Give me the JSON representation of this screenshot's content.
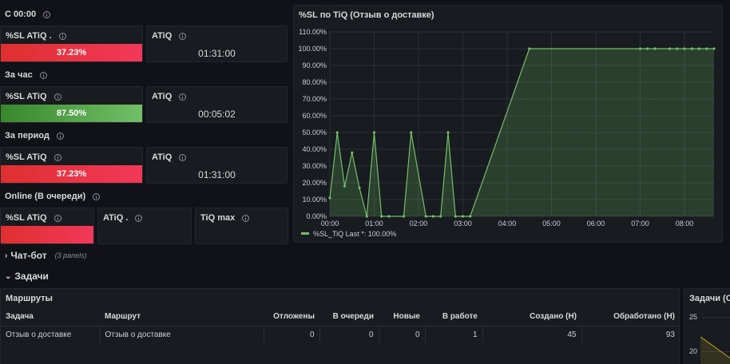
{
  "sections": {
    "s1": "С 00:00",
    "s2": "За час",
    "s3": "За период",
    "s4": "Online (В очереди)"
  },
  "stats": {
    "r1": {
      "sl_title": "%SL ATiQ .",
      "sl_value": "37.23%",
      "sl_level": 0.3723,
      "atiq_title": "ATiQ",
      "atiq_value": "01:31:00"
    },
    "r2": {
      "sl_title": "%SL ATiQ",
      "sl_value": "87.50%",
      "sl_level": 0.875,
      "atiq_title": "ATiQ",
      "atiq_value": "00:05:02"
    },
    "r3": {
      "sl_title": "%SL ATiQ",
      "sl_value": "37.23%",
      "sl_level": 0.3723,
      "atiq_title": "ATiQ",
      "atiq_value": "01:31:00"
    },
    "r4": {
      "sl_title": "%SL ATiQ",
      "atiq_title": "ATiQ .",
      "tiqmax_title": "TiQ max"
    }
  },
  "rows": {
    "chat_bot": {
      "title": "Чат-бот",
      "count": "(3 panels)"
    },
    "tasks": {
      "title": "Задачи"
    }
  },
  "table": {
    "title": "Маршруты",
    "headers": [
      "Задача",
      "Маршрут",
      "Отложены",
      "В очереди",
      "Новые",
      "В работе",
      "Создано (Н)",
      "Обработано (Н)"
    ],
    "rows": [
      [
        "Отзыв о доставке",
        "Отзыв о доставке",
        "0",
        "0",
        "0",
        "1",
        "45",
        "93"
      ]
    ]
  },
  "right_panel": {
    "title": "Задачи (От",
    "ticks": [
      "25",
      "20"
    ]
  },
  "colors": {
    "red": "#f2385a",
    "green": "#73bf69",
    "series": "#73bf69",
    "background": "#111217",
    "panel": "#181b1f"
  },
  "chart_data": {
    "type": "area",
    "title": "%SL по TiQ (Отзыв о доставке)",
    "yticks": [
      "0.00%",
      "10.00%",
      "20.00%",
      "30.00%",
      "40.00%",
      "50.00%",
      "60.00%",
      "70.00%",
      "80.00%",
      "90.00%",
      "100.00%",
      "110.00%"
    ],
    "xticks": [
      "00:00",
      "01:00",
      "02:00",
      "03:00",
      "04:00",
      "05:00",
      "06:00",
      "07:00",
      "08:00"
    ],
    "ylim": [
      0,
      110
    ],
    "xlim_minutes": [
      0,
      520
    ],
    "grid": true,
    "legend_placement": "bottom-left",
    "series": [
      {
        "name": "%SL_TiQ",
        "legend_label": "%SL_TiQ  Last *: 100.00%",
        "x_minutes": [
          0,
          10,
          20,
          30,
          40,
          50,
          60,
          70,
          80,
          100,
          110,
          130,
          140,
          150,
          160,
          170,
          180,
          190,
          270,
          420,
          430,
          440,
          460,
          470,
          480,
          490,
          500,
          510,
          520
        ],
        "y": [
          11,
          50,
          18,
          38,
          17,
          0,
          50,
          0,
          0,
          0,
          50,
          0,
          0,
          0,
          50,
          0,
          0,
          0,
          100,
          100,
          100,
          100,
          100,
          100,
          100,
          100,
          100,
          100,
          100
        ]
      }
    ]
  }
}
